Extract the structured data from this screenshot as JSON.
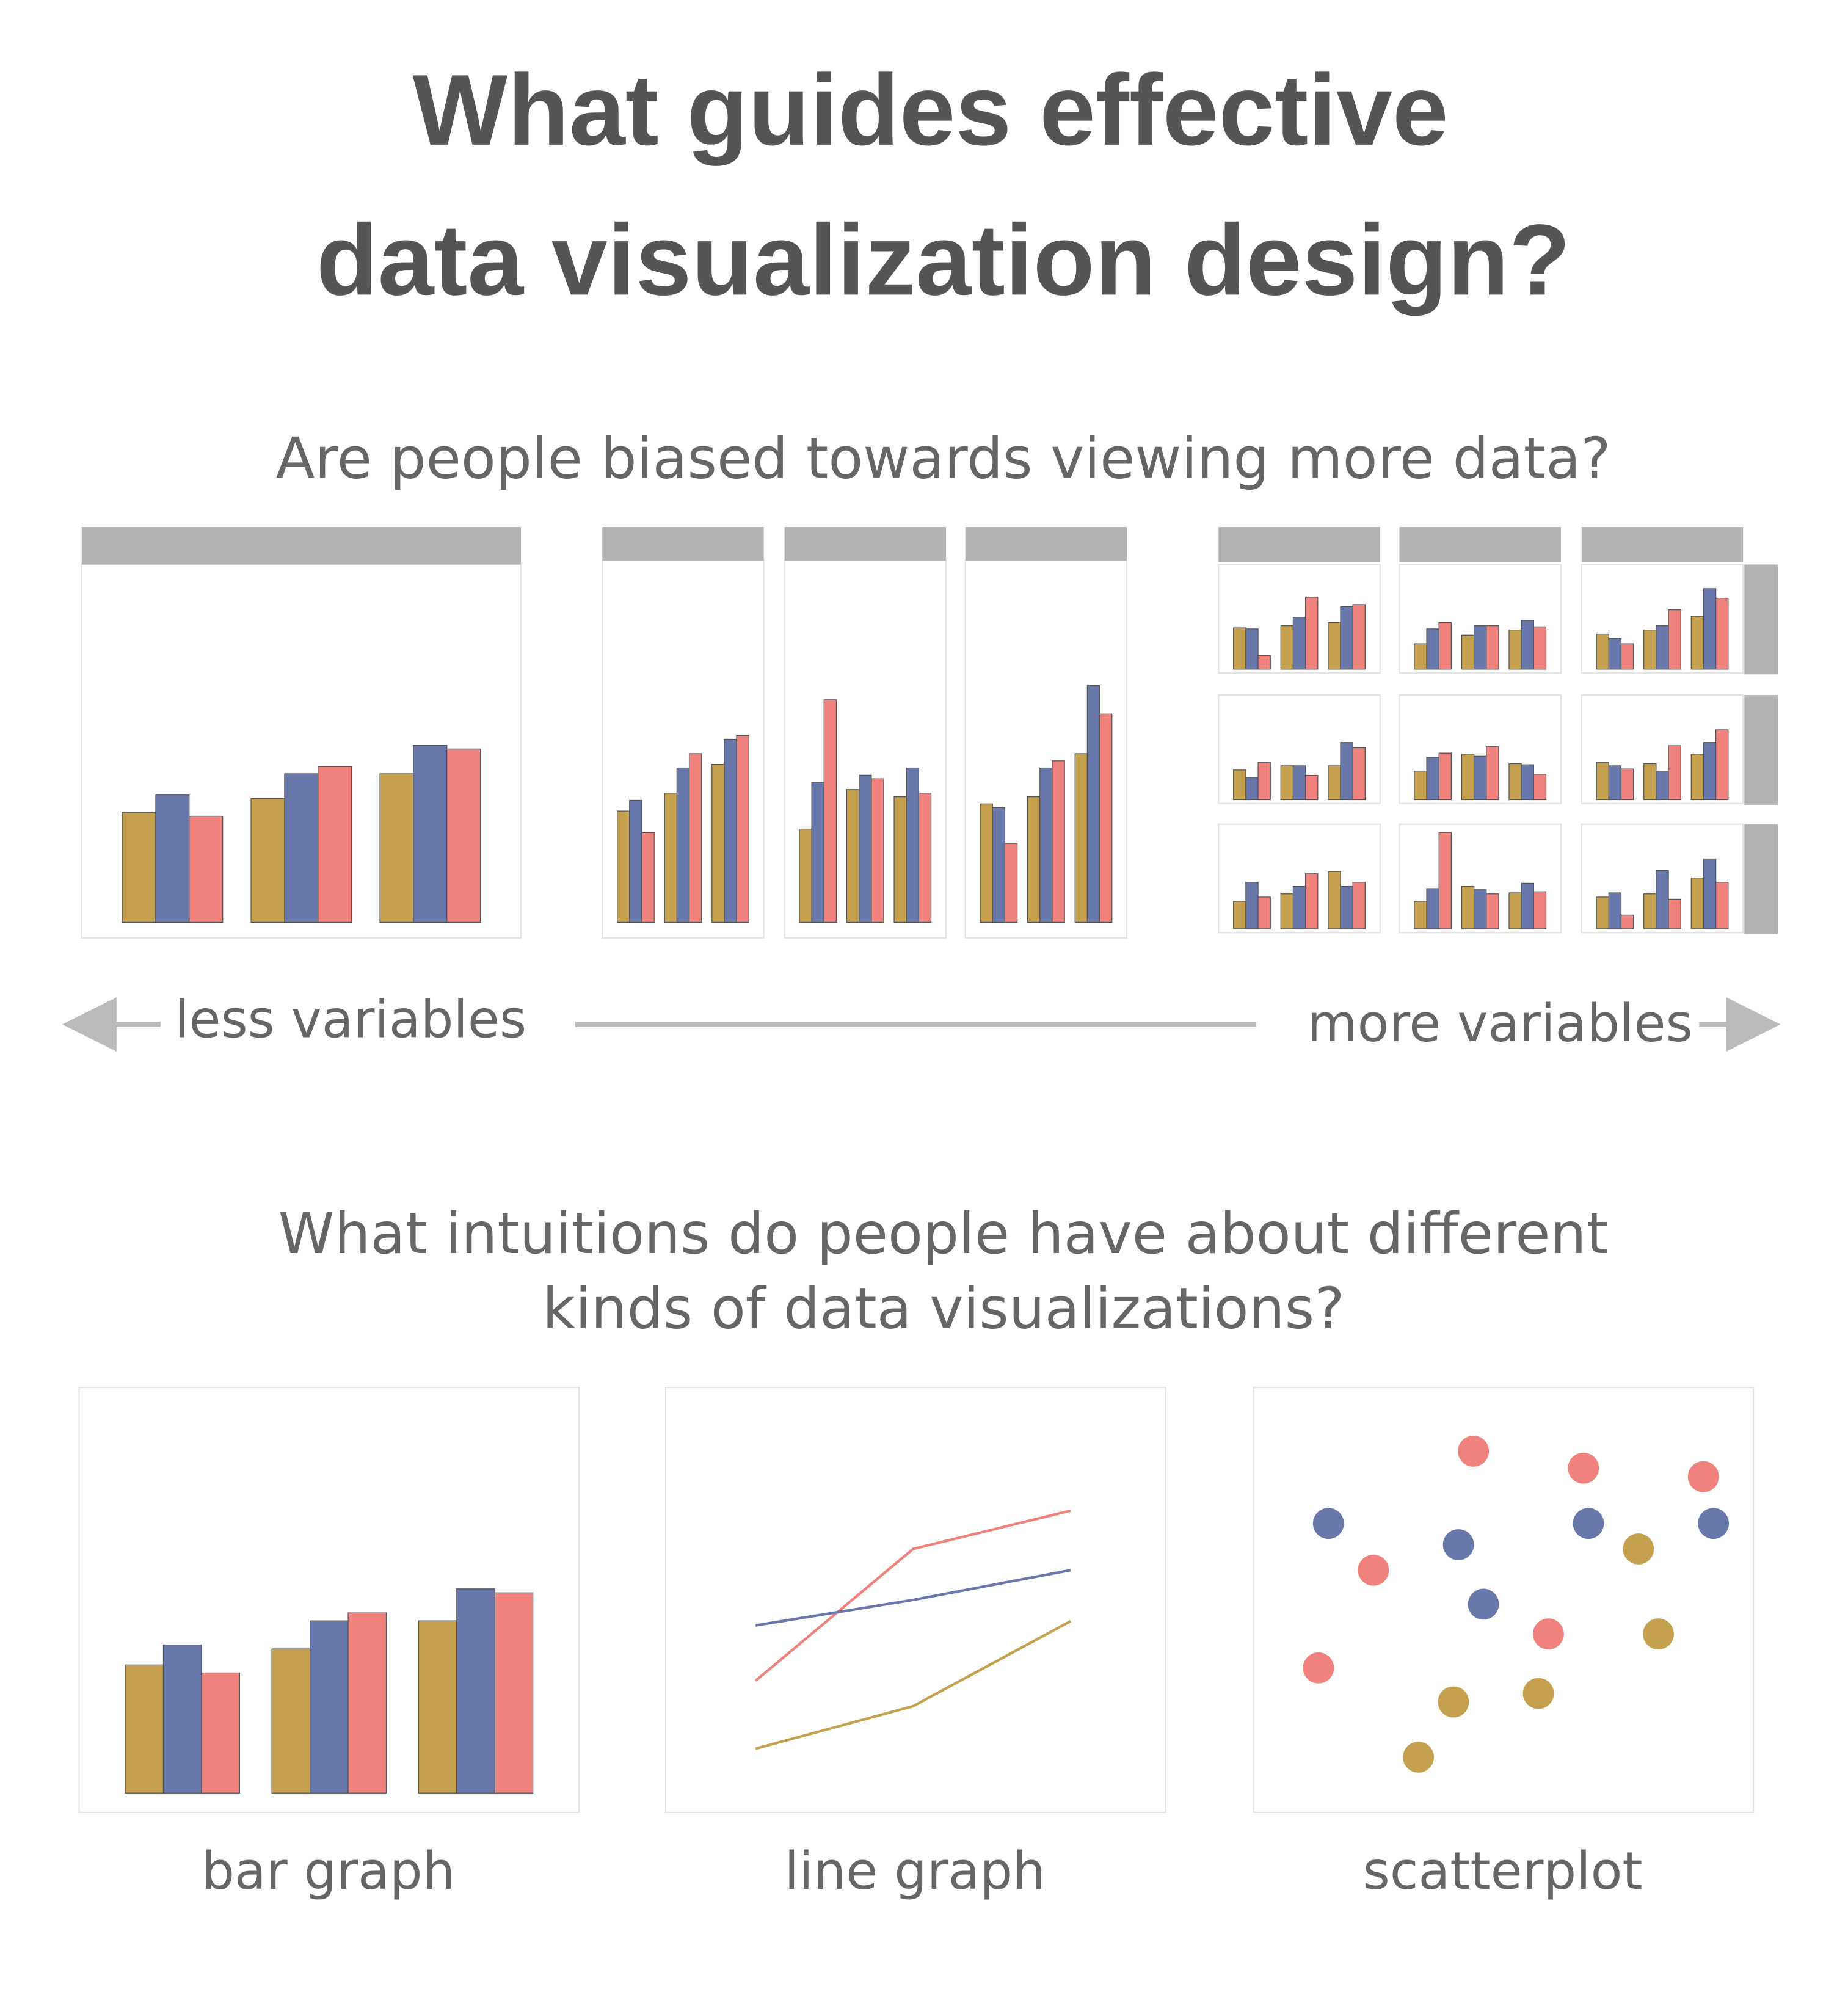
{
  "title_lines": [
    "What guides effective",
    "data visualization design?"
  ],
  "section1": {
    "question": "Are people biased towards viewing more data?",
    "left_label": "less variables",
    "right_label": "more variables",
    "levels": [
      {
        "panels": [
          {
            "type": "bar",
            "ylim": [
              0,
              100
            ],
            "series": [
              {
                "color": "#c4a04f",
                "values": [
                  31,
                  35,
                  42
                ]
              },
              {
                "color": "#6878ab",
                "values": [
                  36,
                  42,
                  50
                ]
              },
              {
                "color": "#ef827c",
                "values": [
                  30,
                  44,
                  49
                ]
              }
            ]
          }
        ]
      },
      {
        "panels": [
          {
            "type": "bar",
            "ylim": [
              0,
              100
            ],
            "series": [
              {
                "color": "#c4a04f",
                "values": [
                  31,
                  36,
                  44
                ]
              },
              {
                "color": "#6878ab",
                "values": [
                  34,
                  43,
                  51
                ]
              },
              {
                "color": "#ef827c",
                "values": [
                  25,
                  47,
                  52
                ]
              }
            ]
          },
          {
            "type": "bar",
            "ylim": [
              0,
              100
            ],
            "series": [
              {
                "color": "#c4a04f",
                "values": [
                  26,
                  37,
                  35
                ]
              },
              {
                "color": "#6878ab",
                "values": [
                  39,
                  41,
                  43
                ]
              },
              {
                "color": "#ef827c",
                "values": [
                  62,
                  40,
                  36
                ]
              }
            ]
          },
          {
            "type": "bar",
            "ylim": [
              0,
              100
            ],
            "series": [
              {
                "color": "#c4a04f",
                "values": [
                  33,
                  35,
                  47
                ]
              },
              {
                "color": "#6878ab",
                "values": [
                  32,
                  43,
                  66
                ]
              },
              {
                "color": "#ef827c",
                "values": [
                  22,
                  45,
                  58
                ]
              }
            ]
          }
        ]
      },
      {
        "panels": [
          {
            "type": "bar",
            "ylim": [
              0,
              100
            ],
            "series": [
              {
                "color": "#c4a04f",
                "values": [
                  39,
                  41,
                  44
                ]
              },
              {
                "color": "#6878ab",
                "values": [
                  38,
                  49,
                  59
                ]
              },
              {
                "color": "#ef827c",
                "values": [
                  13,
                  68,
                  61
                ]
              }
            ]
          },
          {
            "type": "bar",
            "ylim": [
              0,
              100
            ],
            "series": [
              {
                "color": "#c4a04f",
                "values": [
                  24,
                  32,
                  37
                ]
              },
              {
                "color": "#6878ab",
                "values": [
                  38,
                  41,
                  46
                ]
              },
              {
                "color": "#ef827c",
                "values": [
                  44,
                  41,
                  40
                ]
              }
            ]
          },
          {
            "type": "bar",
            "ylim": [
              0,
              100
            ],
            "series": [
              {
                "color": "#c4a04f",
                "values": [
                  33,
                  37,
                  50
                ]
              },
              {
                "color": "#6878ab",
                "values": [
                  29,
                  41,
                  76
                ]
              },
              {
                "color": "#ef827c",
                "values": [
                  24,
                  56,
                  67
                ]
              }
            ]
          },
          {
            "type": "bar",
            "ylim": [
              0,
              100
            ],
            "series": [
              {
                "color": "#c4a04f",
                "values": [
                  28,
                  32,
                  32
                ]
              },
              {
                "color": "#6878ab",
                "values": [
                  21,
                  32,
                  54
                ]
              },
              {
                "color": "#ef827c",
                "values": [
                  35,
                  23,
                  49
                ]
              }
            ]
          },
          {
            "type": "bar",
            "ylim": [
              0,
              100
            ],
            "series": [
              {
                "color": "#c4a04f",
                "values": [
                  27,
                  43,
                  34
                ]
              },
              {
                "color": "#6878ab",
                "values": [
                  40,
                  41,
                  33
                ]
              },
              {
                "color": "#ef827c",
                "values": [
                  44,
                  50,
                  24
                ]
              }
            ]
          },
          {
            "type": "bar",
            "ylim": [
              0,
              100
            ],
            "series": [
              {
                "color": "#c4a04f",
                "values": [
                  35,
                  34,
                  43
                ]
              },
              {
                "color": "#6878ab",
                "values": [
                  32,
                  27,
                  54
                ]
              },
              {
                "color": "#ef827c",
                "values": [
                  29,
                  51,
                  66
                ]
              }
            ]
          },
          {
            "type": "bar",
            "ylim": [
              0,
              100
            ],
            "series": [
              {
                "color": "#c4a04f",
                "values": [
                  26,
                  33,
                  54
                ]
              },
              {
                "color": "#6878ab",
                "values": [
                  44,
                  40,
                  40
                ]
              },
              {
                "color": "#ef827c",
                "values": [
                  30,
                  52,
                  44
                ]
              }
            ]
          },
          {
            "type": "bar",
            "ylim": [
              0,
              100
            ],
            "series": [
              {
                "color": "#c4a04f",
                "values": [
                  26,
                  40,
                  34
                ]
              },
              {
                "color": "#6878ab",
                "values": [
                  38,
                  37,
                  43
                ]
              },
              {
                "color": "#ef827c",
                "values": [
                  91,
                  33,
                  35
                ]
              }
            ]
          },
          {
            "type": "bar",
            "ylim": [
              0,
              100
            ],
            "series": [
              {
                "color": "#c4a04f",
                "values": [
                  30,
                  33,
                  48
                ]
              },
              {
                "color": "#6878ab",
                "values": [
                  34,
                  55,
                  66
                ]
              },
              {
                "color": "#ef827c",
                "values": [
                  13,
                  28,
                  44
                ]
              }
            ]
          }
        ]
      }
    ]
  },
  "section2": {
    "question_lines": [
      "What intuitions do people have about different",
      "kinds of data visualizations?"
    ],
    "charts": [
      {
        "type": "bar",
        "caption": "bar graph",
        "ylim": [
          0,
          100
        ],
        "series": [
          {
            "color": "#c4a04f",
            "values": [
              32,
              36,
              43
            ]
          },
          {
            "color": "#6878ab",
            "values": [
              37,
              43,
              51
            ]
          },
          {
            "color": "#ef827c",
            "values": [
              30,
              45,
              50
            ]
          }
        ]
      },
      {
        "type": "line",
        "caption": "line graph",
        "categories": [
          null,
          null,
          null
        ],
        "ylim": [
          0,
          100
        ],
        "series": [
          {
            "color": "#ef827c",
            "values": [
              31,
              62,
              71
            ]
          },
          {
            "color": "#6878ab",
            "values": [
              44,
              50,
              57
            ]
          },
          {
            "color": "#c4a04f",
            "values": [
              15,
              25,
              45
            ]
          }
        ]
      },
      {
        "type": "scatter",
        "caption": "scatterplot",
        "xlim": [
          0,
          100
        ],
        "ylim": [
          0,
          100
        ],
        "series": [
          {
            "color": "#ef827c",
            "x": [
              44,
              66,
              90,
              24,
              59,
              13
            ],
            "y": [
              85,
              81,
              79,
              57,
              42,
              34
            ]
          },
          {
            "color": "#6878ab",
            "x": [
              15,
              41,
              67,
              92,
              46
            ],
            "y": [
              68,
              63,
              68,
              68,
              49
            ]
          },
          {
            "color": "#c4a04f",
            "x": [
              77,
              81,
              57,
              40,
              33
            ],
            "y": [
              62,
              42,
              28,
              26,
              13
            ]
          }
        ]
      }
    ]
  }
}
